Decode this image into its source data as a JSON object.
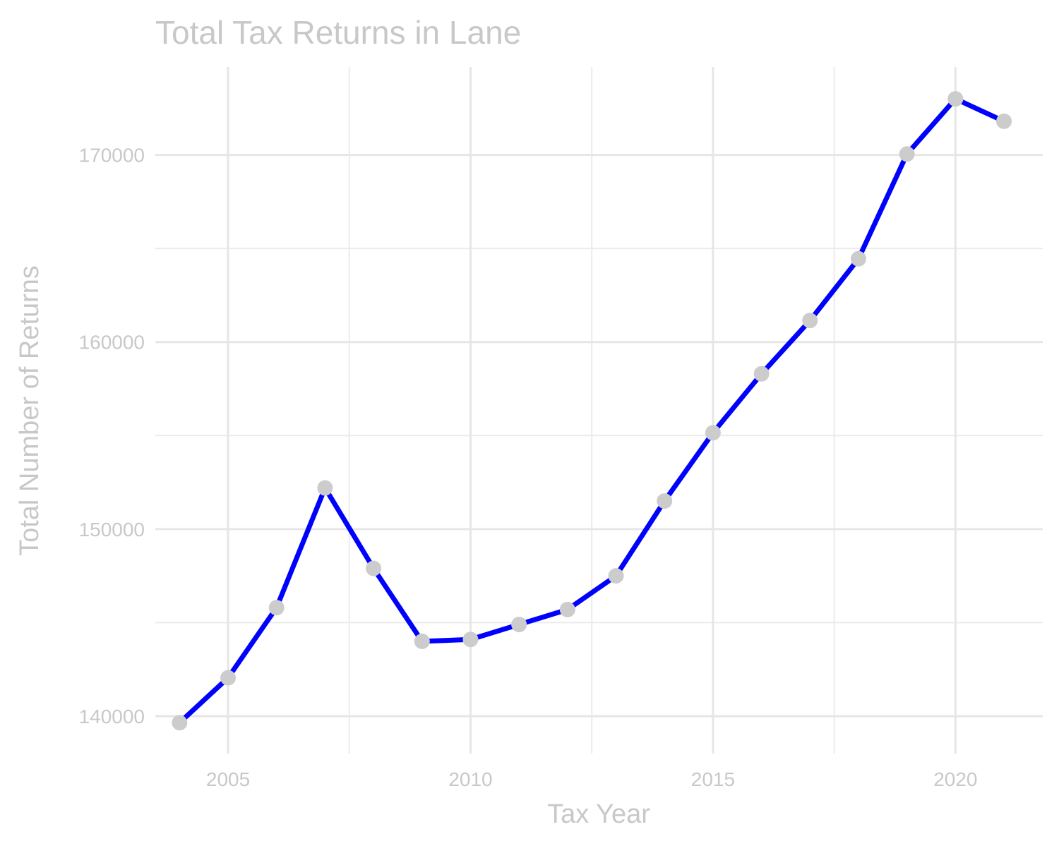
{
  "chart_data": {
    "type": "line",
    "title": "Total Tax Returns in Lane",
    "xlabel": "Tax Year",
    "ylabel": "Total Number of Returns",
    "x": [
      2004,
      2005,
      2006,
      2007,
      2008,
      2009,
      2010,
      2011,
      2012,
      2013,
      2014,
      2015,
      2016,
      2017,
      2018,
      2019,
      2020,
      2021
    ],
    "series": [
      {
        "values": [
          139650,
          142050,
          145800,
          152200,
          147900,
          144000,
          144100,
          144900,
          145700,
          147500,
          151500,
          155150,
          158300,
          161150,
          164450,
          170050,
          173000,
          171800
        ]
      }
    ],
    "xlim": [
      2003.5,
      2021.8
    ],
    "ylim": [
      138000,
      174700
    ],
    "x_ticks": [
      2005,
      2010,
      2015,
      2020
    ],
    "x_tick_labels": [
      "2005",
      "2010",
      "2015",
      "2020"
    ],
    "y_ticks": [
      140000,
      150000,
      160000,
      170000
    ],
    "y_tick_labels": [
      "140000",
      "150000",
      "160000",
      "170000"
    ],
    "x_minor_ticks": [
      2007.5,
      2012.5,
      2017.5
    ],
    "y_minor_ticks": [
      145000,
      155000,
      165000
    ],
    "grid": true,
    "legend": "none",
    "colors": {
      "line": "#0000ff",
      "points": "#cccccc",
      "grid": "#e6e6e6",
      "text": "#c8c8c8"
    }
  }
}
